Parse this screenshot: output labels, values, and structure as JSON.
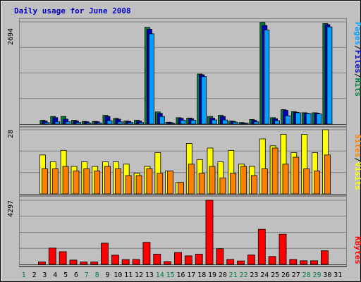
{
  "chart_data": {
    "type": "bar",
    "title": "Daily usage for June 2008",
    "days": [
      "1",
      "2",
      "3",
      "4",
      "5",
      "6",
      "7",
      "8",
      "9",
      "10",
      "11",
      "12",
      "13",
      "14",
      "15",
      "16",
      "17",
      "18",
      "19",
      "20",
      "21",
      "22",
      "23",
      "24",
      "25",
      "26",
      "27",
      "28",
      "29",
      "30",
      "31"
    ],
    "weekend_days": [
      "1",
      "7",
      "8",
      "14",
      "15",
      "21",
      "22",
      "28",
      "29"
    ],
    "panels": {
      "hits_files_pages": {
        "scale_label": "2694",
        "ylim": [
          0,
          2694
        ],
        "side_labels": [
          "Pages",
          "/",
          "Files",
          "/",
          "Hits"
        ],
        "side_colors": [
          "#00a0ff",
          "#000000",
          "#0000c0",
          "#000000",
          "#008040"
        ],
        "series": [
          {
            "name": "Hits",
            "color": "#008040",
            "values": [
              0,
              0,
              100,
              200,
              200,
              100,
              70,
              70,
              230,
              150,
              80,
              100,
              2550,
              320,
              50,
              170,
              160,
              1320,
              200,
              230,
              80,
              40,
              120,
              2680,
              170,
              380,
              330,
              300,
              300,
              2650,
              0
            ]
          },
          {
            "name": "Files",
            "color": "#0000c0",
            "values": [
              0,
              0,
              80,
              170,
              130,
              80,
              60,
              60,
              200,
              130,
              70,
              80,
              2500,
              280,
              40,
              150,
              140,
              1300,
              160,
              200,
              70,
              30,
              100,
              2600,
              140,
              360,
              310,
              290,
              290,
              2620,
              0
            ]
          },
          {
            "name": "Pages",
            "color": "#00a0ff",
            "values": [
              0,
              0,
              40,
              60,
              60,
              40,
              30,
              30,
              90,
              60,
              40,
              40,
              2380,
              200,
              20,
              100,
              100,
              1250,
              110,
              110,
              50,
              20,
              60,
              2480,
              90,
              220,
              300,
              280,
              270,
              2560,
              0
            ]
          }
        ]
      },
      "visits_sites": {
        "scale_label": "28",
        "ylim": [
          0,
          28
        ],
        "side_labels": [
          "Sites",
          "/",
          "Visits"
        ],
        "side_colors": [
          "#ff8000",
          "#000000",
          "#ffff00"
        ],
        "series": [
          {
            "name": "Visits",
            "color": "#ffff00",
            "values": [
              0,
              0,
              17,
              14,
              19,
              12,
              14,
              12,
              14,
              14,
              13,
              9,
              12,
              18,
              10,
              5,
              22,
              15,
              20,
              14,
              19,
              13,
              12,
              24,
              21,
              26,
              18,
              26,
              18,
              28,
              0
            ]
          },
          {
            "name": "Sites",
            "color": "#ff8000",
            "values": [
              0,
              0,
              11,
              11,
              12,
              10,
              11,
              10,
              12,
              11,
              8,
              8,
              11,
              9,
              10,
              5,
              13,
              9,
              12,
              7,
              9,
              12,
              8,
              11,
              20,
              13,
              16,
              11,
              10,
              17,
              0
            ]
          }
        ]
      },
      "kbytes": {
        "scale_label": "4297",
        "ylim": [
          0,
          4297
        ],
        "side_labels": [
          "KBytes"
        ],
        "side_colors": [
          "#ff0000"
        ],
        "series": [
          {
            "name": "KBytes",
            "color": "#ff0000",
            "values": [
              0,
              0,
              160,
              1090,
              850,
              290,
              160,
              160,
              1420,
              620,
              320,
              330,
              1480,
              690,
              190,
              800,
              570,
              690,
              4297,
              1050,
              330,
              230,
              630,
              2350,
              530,
              2020,
              330,
              240,
              240,
              910,
              0
            ]
          }
        ]
      }
    }
  }
}
